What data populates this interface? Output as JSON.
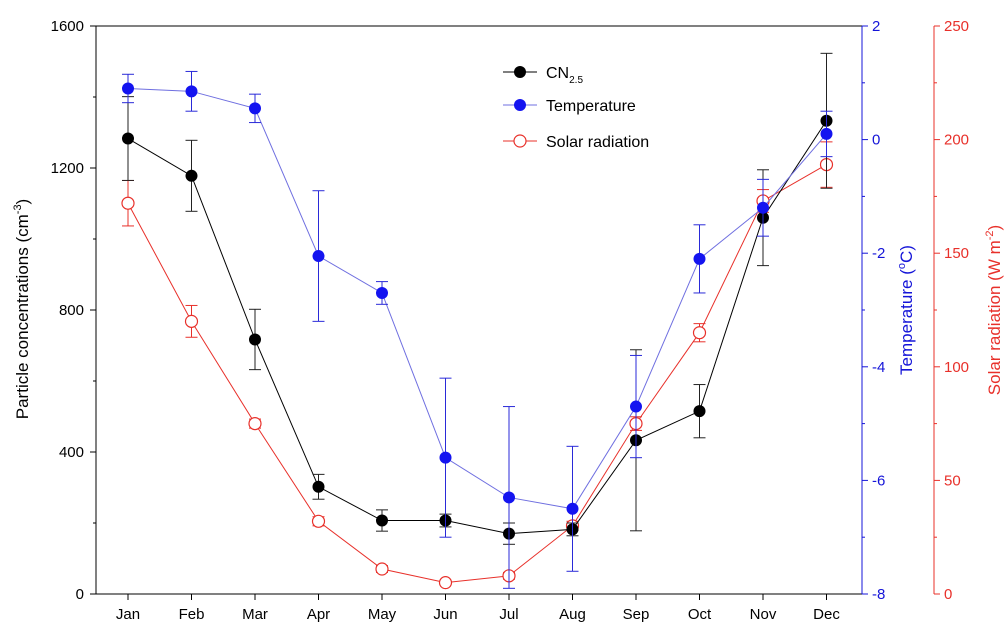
{
  "chart_data": {
    "type": "line",
    "categories": [
      "Jan",
      "Feb",
      "Mar",
      "Apr",
      "May",
      "Jun",
      "Jul",
      "Aug",
      "Sep",
      "Oct",
      "Nov",
      "Dec"
    ],
    "axes": {
      "left": {
        "label_main": "Particle concentrations (cm",
        "label_sup": "-3",
        "label_end": ")",
        "min": 0,
        "max": 1600,
        "ticks": [
          0,
          400,
          800,
          1200,
          1600
        ],
        "color": "#000000"
      },
      "right1": {
        "label_main": "Temperature (",
        "label_sup": "o",
        "label_end": "C)",
        "min": -8,
        "max": 2,
        "ticks": [
          -8,
          -6,
          -4,
          -2,
          0,
          2
        ],
        "color": "#1414d8"
      },
      "right2": {
        "label_main": "Solar radiation (W m",
        "label_sup": "-2",
        "label_end": ")",
        "min": 0,
        "max": 250,
        "ticks": [
          0,
          50,
          100,
          150,
          200,
          250
        ],
        "color": "#e8302a"
      }
    },
    "series": [
      {
        "key": "cn",
        "name": "CN",
        "name_sub": "2.5",
        "axis": "left",
        "color": "#000000",
        "marker": "filled",
        "values": [
          1283,
          1178,
          717,
          302,
          207,
          207,
          170,
          182,
          433,
          515,
          1060,
          1333
        ],
        "errors": [
          118,
          100,
          85,
          35,
          30,
          18,
          30,
          18,
          255,
          75,
          135,
          190
        ]
      },
      {
        "key": "temp",
        "name": "Temperature",
        "axis": "right1",
        "color": "#1414f0",
        "line_color": "#6f6fe0",
        "marker": "filled",
        "values": [
          0.9,
          0.85,
          0.55,
          -2.05,
          -2.7,
          -5.6,
          -6.3,
          -6.5,
          -4.7,
          -2.1,
          -1.2,
          0.1
        ],
        "errors": [
          0.25,
          0.35,
          0.25,
          1.15,
          0.2,
          1.4,
          1.6,
          1.1,
          0.9,
          0.6,
          0.5,
          0.4
        ]
      },
      {
        "key": "solar",
        "name": "Solar radiation",
        "axis": "right2",
        "color": "#e8302a",
        "marker": "open",
        "values": [
          172,
          120,
          75,
          32,
          11,
          5,
          8,
          30,
          75,
          115,
          173,
          189
        ],
        "errors": [
          10,
          7,
          2,
          2,
          1.5,
          1,
          1.5,
          2,
          3,
          4,
          5,
          10
        ]
      }
    ],
    "legend_position": "top-center",
    "grid": false
  }
}
